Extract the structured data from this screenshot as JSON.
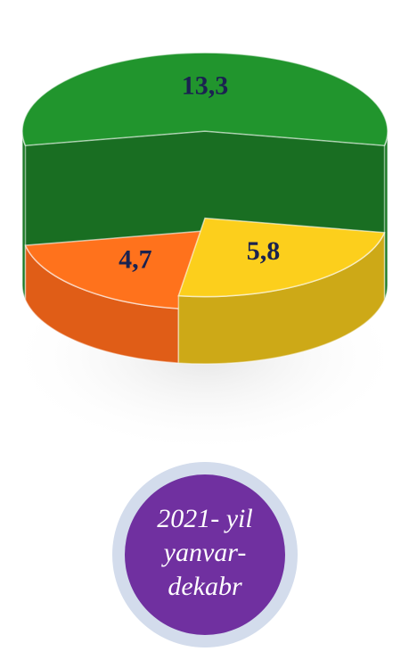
{
  "chart_data": {
    "type": "pie",
    "values": [
      13.3,
      5.8,
      4.7
    ],
    "value_labels": [
      "13,3",
      "5,8",
      "4,7"
    ],
    "colors": [
      "#1f8a2a",
      "#e9c01a",
      "#ff6a1a"
    ],
    "annotation": [
      "2021- yil",
      "yanvar-",
      "dekabr"
    ]
  }
}
